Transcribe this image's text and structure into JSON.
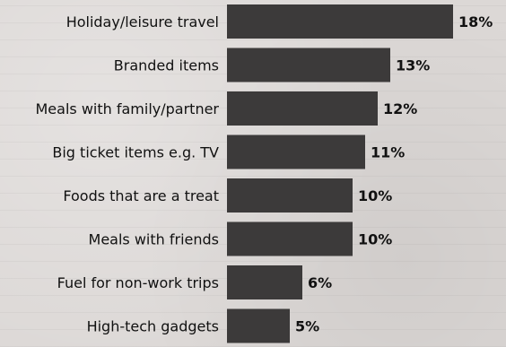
{
  "chart_data": {
    "type": "bar",
    "orientation": "horizontal",
    "categories": [
      "Holiday/leisure travel",
      "Branded items",
      "Meals with family/partner",
      "Big ticket items e.g. TV",
      "Foods that are a treat",
      "Meals with friends",
      "Fuel for non-work trips",
      "High-tech gadgets"
    ],
    "values": [
      18,
      13,
      12,
      11,
      10,
      10,
      6,
      5
    ],
    "value_labels": [
      "18%",
      "13%",
      "12%",
      "11%",
      "10%",
      "10%",
      "6%",
      "5%"
    ],
    "unit": "%",
    "xlim": [
      0,
      18
    ],
    "grid": false,
    "legend": "none",
    "colors": {
      "bar": "#3c3a3a",
      "text": "#111111",
      "background": "#dcd8d6"
    }
  }
}
